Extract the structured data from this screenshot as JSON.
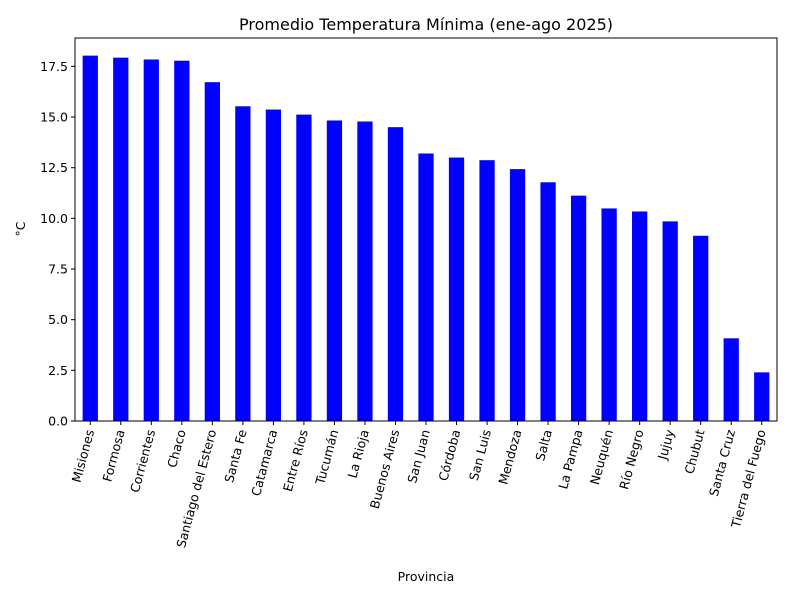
{
  "chart_data": {
    "type": "bar",
    "title": "Promedio Temperatura Mínima (ene-ago 2025)",
    "xlabel": "Provincia",
    "ylabel": "°C",
    "ylim": [
      0,
      18.9
    ],
    "yticks": [
      "0.0",
      "2.5",
      "5.0",
      "7.5",
      "10.0",
      "12.5",
      "15.0",
      "17.5"
    ],
    "grid": false,
    "legend": "none",
    "bar_color": "#0000ff",
    "categories": [
      "Misiones",
      "Formosa",
      "Corrientes",
      "Chaco",
      "Santiago del Estero",
      "Santa Fe",
      "Catamarca",
      "Entre Ríos",
      "Tucumán",
      "La Rioja",
      "Buenos Aires",
      "San Juan",
      "Córdoba",
      "San Luis",
      "Mendoza",
      "Salta",
      "La Pampa",
      "Neuquén",
      "Río Negro",
      "Jujuy",
      "Chubut",
      "Santa Cruz",
      "Tierra del Fuego"
    ],
    "values": [
      18.03,
      17.93,
      17.84,
      17.78,
      16.72,
      15.53,
      15.37,
      15.12,
      14.83,
      14.78,
      14.5,
      13.2,
      13.0,
      12.87,
      12.43,
      11.78,
      11.12,
      10.49,
      10.34,
      9.85,
      9.14,
      4.08,
      2.4
    ]
  }
}
